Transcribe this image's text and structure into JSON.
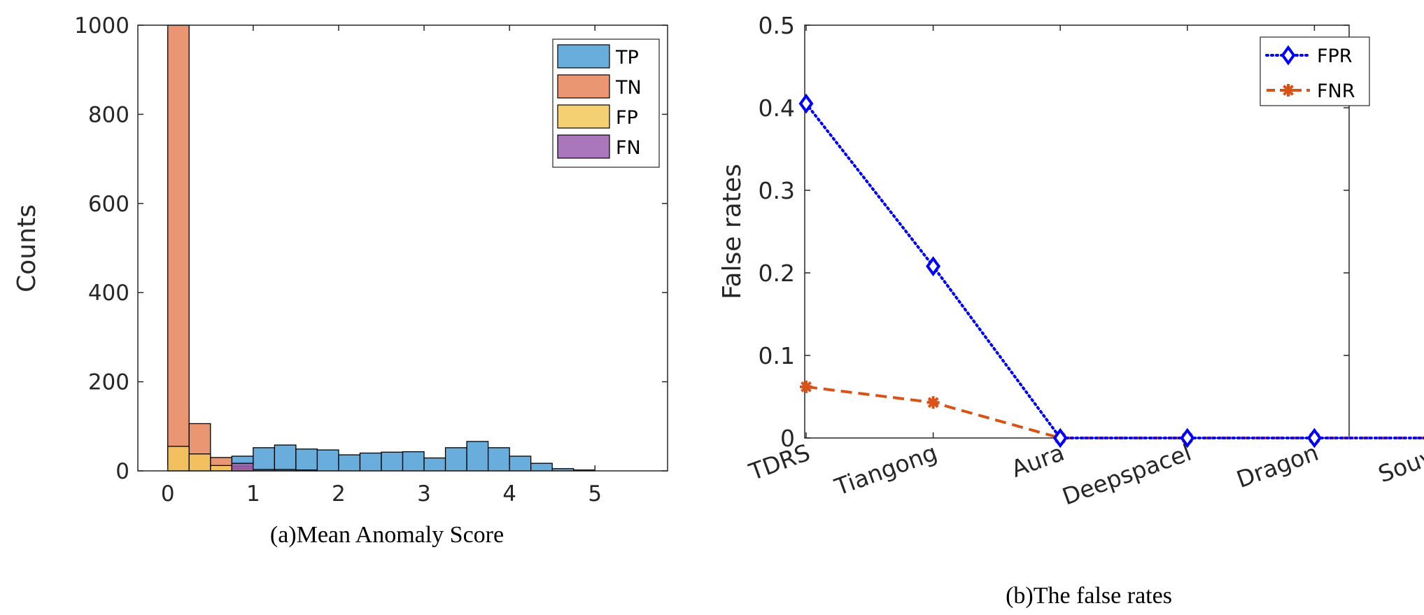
{
  "chart_data": [
    {
      "type": "bar",
      "subtype": "overlaid-histogram",
      "title": "",
      "caption": "(a)Mean Anomaly Score",
      "xlabel": "",
      "ylabel": "Counts",
      "xlim": [
        -0.35,
        5.85
      ],
      "ylim": [
        0,
        1000
      ],
      "xticks": [
        "0",
        "1",
        "2",
        "3",
        "4",
        "5"
      ],
      "yticks": [
        "0",
        "200",
        "400",
        "600",
        "800",
        "1000"
      ],
      "bin_width": 0.25,
      "legend_position": "top-right",
      "series": [
        {
          "name": "TP",
          "color": "#4d9fd6",
          "bins": [
            [
              0.0,
              0.25,
              0
            ],
            [
              0.25,
              0.5,
              0
            ],
            [
              0.5,
              0.75,
              0
            ],
            [
              0.75,
              1.0,
              33
            ],
            [
              1.0,
              1.25,
              52
            ],
            [
              1.25,
              1.5,
              58
            ],
            [
              1.5,
              1.75,
              49
            ],
            [
              1.75,
              2.0,
              47
            ],
            [
              2.0,
              2.25,
              36
            ],
            [
              2.25,
              2.5,
              40
            ],
            [
              2.5,
              2.75,
              42
            ],
            [
              2.75,
              3.0,
              43
            ],
            [
              3.0,
              3.25,
              29
            ],
            [
              3.25,
              3.5,
              52
            ],
            [
              3.5,
              3.75,
              66
            ],
            [
              3.75,
              4.0,
              52
            ],
            [
              4.0,
              4.25,
              33
            ],
            [
              4.25,
              4.5,
              17
            ],
            [
              4.5,
              4.75,
              5
            ],
            [
              4.75,
              5.0,
              2
            ]
          ]
        },
        {
          "name": "TN",
          "color": "#e8845a",
          "bins": [
            [
              0.0,
              0.25,
              1000
            ],
            [
              0.25,
              0.5,
              106
            ],
            [
              0.5,
              0.75,
              30
            ],
            [
              0.75,
              1.0,
              10
            ]
          ]
        },
        {
          "name": "FP",
          "color": "#f3c85a",
          "bins": [
            [
              0.0,
              0.25,
              55
            ],
            [
              0.25,
              0.5,
              38
            ],
            [
              0.5,
              0.75,
              12
            ],
            [
              0.75,
              1.0,
              5
            ]
          ]
        },
        {
          "name": "FN",
          "color": "#9b5eb0",
          "bins": [
            [
              0.75,
              1.0,
              17
            ],
            [
              1.0,
              1.25,
              3
            ],
            [
              1.25,
              1.5,
              3
            ],
            [
              1.5,
              1.75,
              2
            ]
          ]
        }
      ]
    },
    {
      "type": "line",
      "title": "",
      "caption": "(b)The false rates",
      "xlabel": "",
      "ylabel": "False rates",
      "categories": [
        "TDRS",
        "Tiangong",
        "Aura",
        "Deepspacel",
        "Dragon",
        "Souyz"
      ],
      "ylim": [
        0,
        0.5
      ],
      "yticks": [
        "0",
        "0.1",
        "0.2",
        "0.3",
        "0.4",
        "0.5"
      ],
      "legend_position": "top-right",
      "series": [
        {
          "name": "FPR",
          "color": "#0000ff",
          "marker": "diamond",
          "linestyle": "dotted",
          "values": [
            0.405,
            0.208,
            0.0,
            0.0,
            0.0,
            0.0
          ]
        },
        {
          "name": "FNR",
          "color": "#d95319",
          "marker": "asterisk",
          "linestyle": "dashed",
          "values": [
            0.062,
            0.043,
            0.0,
            0.0,
            0.0,
            0.0
          ]
        }
      ]
    }
  ]
}
